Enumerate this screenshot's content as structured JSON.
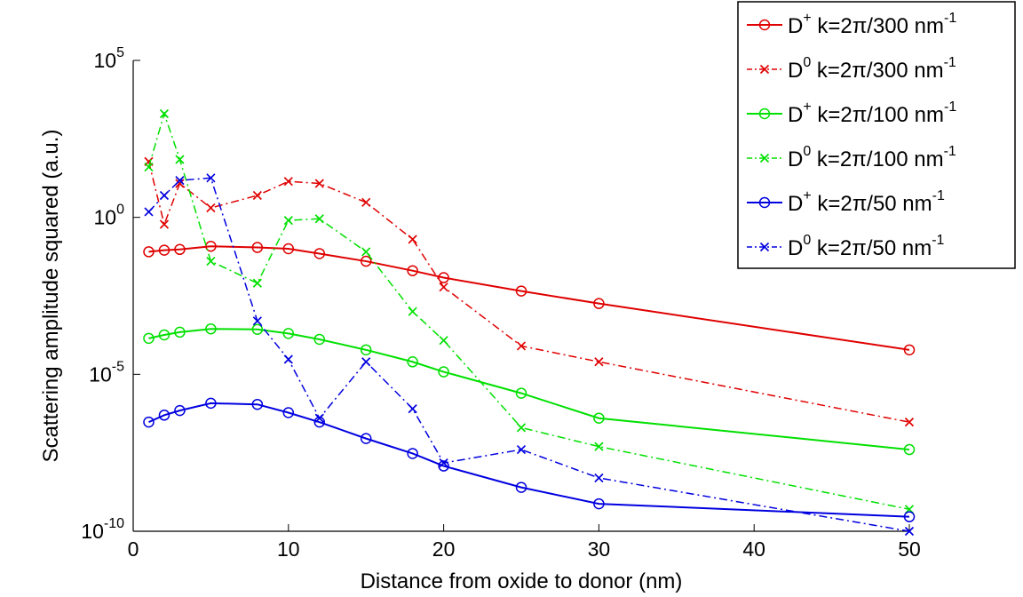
{
  "chart_data": {
    "type": "line",
    "title": "",
    "xlabel": "Distance from oxide to donor (nm)",
    "ylabel": "Scattering amplitude squared (a.u.)",
    "xlim": [
      0,
      50
    ],
    "ylim": [
      1e-10,
      100000.0
    ],
    "yscale": "log",
    "xticks": [
      0,
      10,
      20,
      30,
      40,
      50
    ],
    "yticks": [
      {
        "value": 1e-10,
        "base": "10",
        "exp": "-10"
      },
      {
        "value": 1e-05,
        "base": "10",
        "exp": "-5"
      },
      {
        "value": 1,
        "base": "10",
        "exp": "0"
      },
      {
        "value": 100000.0,
        "base": "10",
        "exp": "5"
      }
    ],
    "grid": false,
    "legend_position": "top-right",
    "series": [
      {
        "name_base": "D",
        "name_sup": "+",
        "name_rest": " k=2π/300 nm",
        "name_exp": "-1",
        "color": "#e00000",
        "line": "solid",
        "marker": "circle",
        "x": [
          1,
          2,
          3,
          5,
          8,
          10,
          12,
          15,
          18,
          20,
          25,
          30,
          50
        ],
        "y": [
          0.08,
          0.09,
          0.095,
          0.12,
          0.11,
          0.1,
          0.07,
          0.04,
          0.02,
          0.012,
          0.0045,
          0.0018,
          6e-05
        ]
      },
      {
        "name_base": "D",
        "name_sup": "0",
        "name_rest": " k=2π/300 nm",
        "name_exp": "-1",
        "color": "#e00000",
        "line": "dashdot",
        "marker": "x",
        "x": [
          1,
          2,
          3,
          5,
          8,
          10,
          12,
          15,
          18,
          20,
          25,
          30,
          50
        ],
        "y": [
          60,
          0.6,
          12,
          2,
          5,
          14,
          12,
          3,
          0.2,
          0.006,
          8e-05,
          2.5e-05,
          3e-07
        ]
      },
      {
        "name_base": "D",
        "name_sup": "+",
        "name_rest": " k=2π/100 nm",
        "name_exp": "-1",
        "color": "#00e000",
        "line": "solid",
        "marker": "circle",
        "x": [
          1,
          2,
          3,
          5,
          8,
          10,
          12,
          15,
          18,
          20,
          25,
          30,
          50
        ],
        "y": [
          0.00014,
          0.00018,
          0.00022,
          0.00028,
          0.00027,
          0.0002,
          0.00013,
          6e-05,
          2.5e-05,
          1.2e-05,
          2.5e-06,
          4e-07,
          4e-08
        ]
      },
      {
        "name_base": "D",
        "name_sup": "0",
        "name_rest": " k=2π/100 nm",
        "name_exp": "-1",
        "color": "#00e000",
        "line": "dashdot",
        "marker": "x",
        "x": [
          1,
          2,
          3,
          5,
          8,
          10,
          12,
          15,
          18,
          20,
          25,
          30,
          50
        ],
        "y": [
          40,
          2000,
          70,
          0.04,
          0.008,
          0.8,
          0.9,
          0.08,
          0.001,
          0.00012,
          2e-07,
          5e-08,
          5e-10
        ]
      },
      {
        "name_base": "D",
        "name_sup": "+",
        "name_rest": " k=2π/50 nm",
        "name_exp": "-1",
        "color": "#0000e0",
        "line": "solid",
        "marker": "circle",
        "x": [
          1,
          2,
          3,
          5,
          8,
          10,
          12,
          15,
          18,
          20,
          25,
          30,
          50
        ],
        "y": [
          3e-07,
          5e-07,
          7e-07,
          1.2e-06,
          1.1e-06,
          6e-07,
          3e-07,
          9e-08,
          3e-08,
          1.2e-08,
          2.5e-09,
          7.5e-10,
          2.9e-10
        ]
      },
      {
        "name_base": "D",
        "name_sup": "0",
        "name_rest": " k=2π/50 nm",
        "name_exp": "-1",
        "color": "#0000e0",
        "line": "dashdot",
        "marker": "x",
        "x": [
          1,
          2,
          3,
          5,
          8,
          10,
          12,
          15,
          18,
          20,
          25,
          30,
          50
        ],
        "y": [
          1.5,
          5,
          15,
          18,
          0.0005,
          3e-05,
          4e-07,
          2.5e-05,
          8e-07,
          1.5e-08,
          4e-08,
          5e-09,
          1e-10
        ]
      }
    ]
  }
}
